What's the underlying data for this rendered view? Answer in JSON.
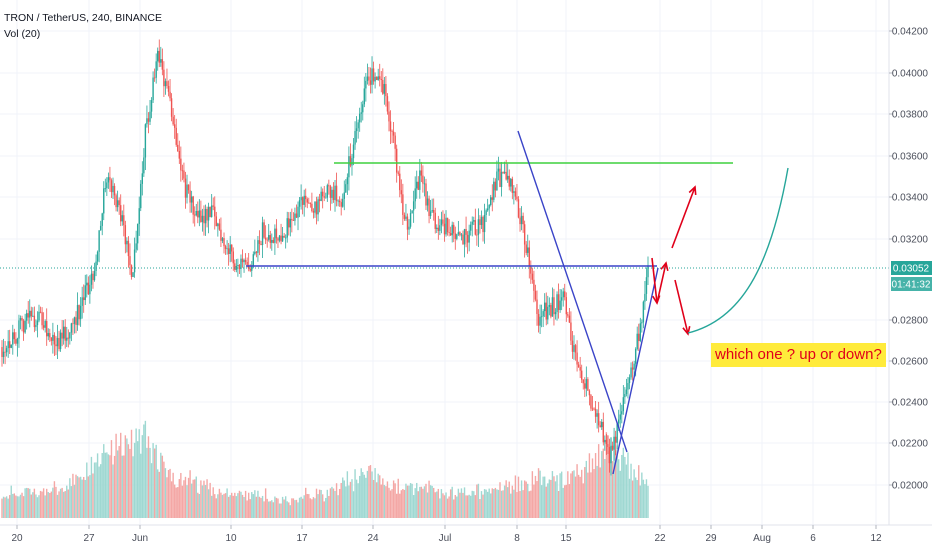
{
  "legend": {
    "symbol": "TRON / TetherUS, 240, BINANCE",
    "volume": "Vol (20)"
  },
  "annotation": {
    "text": "which one ? up or down?"
  },
  "price_badge": {
    "price": "0.03052",
    "countdown": "01:41:32",
    "color": "#26a69a"
  },
  "colors": {
    "up": "#26a69a",
    "down": "#ef5350",
    "vol_up": "#9fd8d2",
    "vol_down": "#f4a7a5",
    "trendline": "#3a44c8",
    "resistance": "#3ed13e",
    "arrow": "#e0001a",
    "curve": "#26a69a",
    "last_price_line": "#26a69a"
  },
  "chart_data": {
    "type": "candlestick",
    "title": "TRON / TetherUS, 240, BINANCE",
    "y_ticks": [
      "0.04200",
      "0.04000",
      "0.03800",
      "0.03600",
      "0.03400",
      "0.03200",
      "0.02800",
      "0.02600",
      "0.02400",
      "0.02200",
      "0.02000"
    ],
    "x_ticks": [
      "20",
      "27",
      "Jun",
      "10",
      "17",
      "24",
      "Jul",
      "8",
      "15",
      "22",
      "29",
      "Aug",
      "6",
      "12"
    ],
    "ylim": [
      0.0186,
      0.0425
    ],
    "last_price": 0.03052,
    "price_path": [
      [
        0,
        0.0267
      ],
      [
        2,
        0.0272
      ],
      [
        4,
        0.0281
      ],
      [
        6,
        0.028
      ],
      [
        8,
        0.0268
      ],
      [
        10,
        0.0274
      ],
      [
        12,
        0.0285
      ],
      [
        14,
        0.03
      ],
      [
        16,
        0.0345
      ],
      [
        18,
        0.033
      ],
      [
        20,
        0.03
      ],
      [
        22,
        0.0365
      ],
      [
        24,
        0.04
      ],
      [
        26,
        0.0375
      ],
      [
        28,
        0.034
      ],
      [
        30,
        0.0325
      ],
      [
        32,
        0.033
      ],
      [
        34,
        0.0315
      ],
      [
        36,
        0.0305
      ],
      [
        38,
        0.03
      ],
      [
        40,
        0.032
      ],
      [
        42,
        0.0318
      ],
      [
        44,
        0.0322
      ],
      [
        46,
        0.0335
      ],
      [
        48,
        0.033
      ],
      [
        50,
        0.0338
      ],
      [
        52,
        0.0335
      ],
      [
        54,
        0.036
      ],
      [
        56,
        0.039
      ],
      [
        58,
        0.0392
      ],
      [
        60,
        0.036
      ],
      [
        62,
        0.032
      ],
      [
        64,
        0.0345
      ],
      [
        66,
        0.0325
      ],
      [
        68,
        0.0322
      ],
      [
        70,
        0.0315
      ],
      [
        72,
        0.032
      ],
      [
        74,
        0.0323
      ],
      [
        76,
        0.0345
      ],
      [
        78,
        0.034
      ],
      [
        80,
        0.032
      ],
      [
        82,
        0.028
      ],
      [
        84,
        0.0285
      ],
      [
        86,
        0.029
      ],
      [
        88,
        0.026
      ],
      [
        90,
        0.0245
      ],
      [
        92,
        0.023
      ],
      [
        93,
        0.0215
      ],
      [
        94,
        0.0225
      ],
      [
        96,
        0.025
      ],
      [
        98,
        0.028
      ],
      [
        99,
        0.0305
      ]
    ],
    "volume_path": [
      [
        0,
        0.25
      ],
      [
        10,
        0.35
      ],
      [
        16,
        0.8
      ],
      [
        22,
        1.0
      ],
      [
        26,
        0.5
      ],
      [
        34,
        0.3
      ],
      [
        44,
        0.2
      ],
      [
        50,
        0.3
      ],
      [
        56,
        0.55
      ],
      [
        60,
        0.4
      ],
      [
        70,
        0.25
      ],
      [
        76,
        0.35
      ],
      [
        82,
        0.45
      ],
      [
        88,
        0.5
      ],
      [
        93,
        0.9
      ],
      [
        99,
        0.35
      ]
    ],
    "candles_count": 420
  }
}
